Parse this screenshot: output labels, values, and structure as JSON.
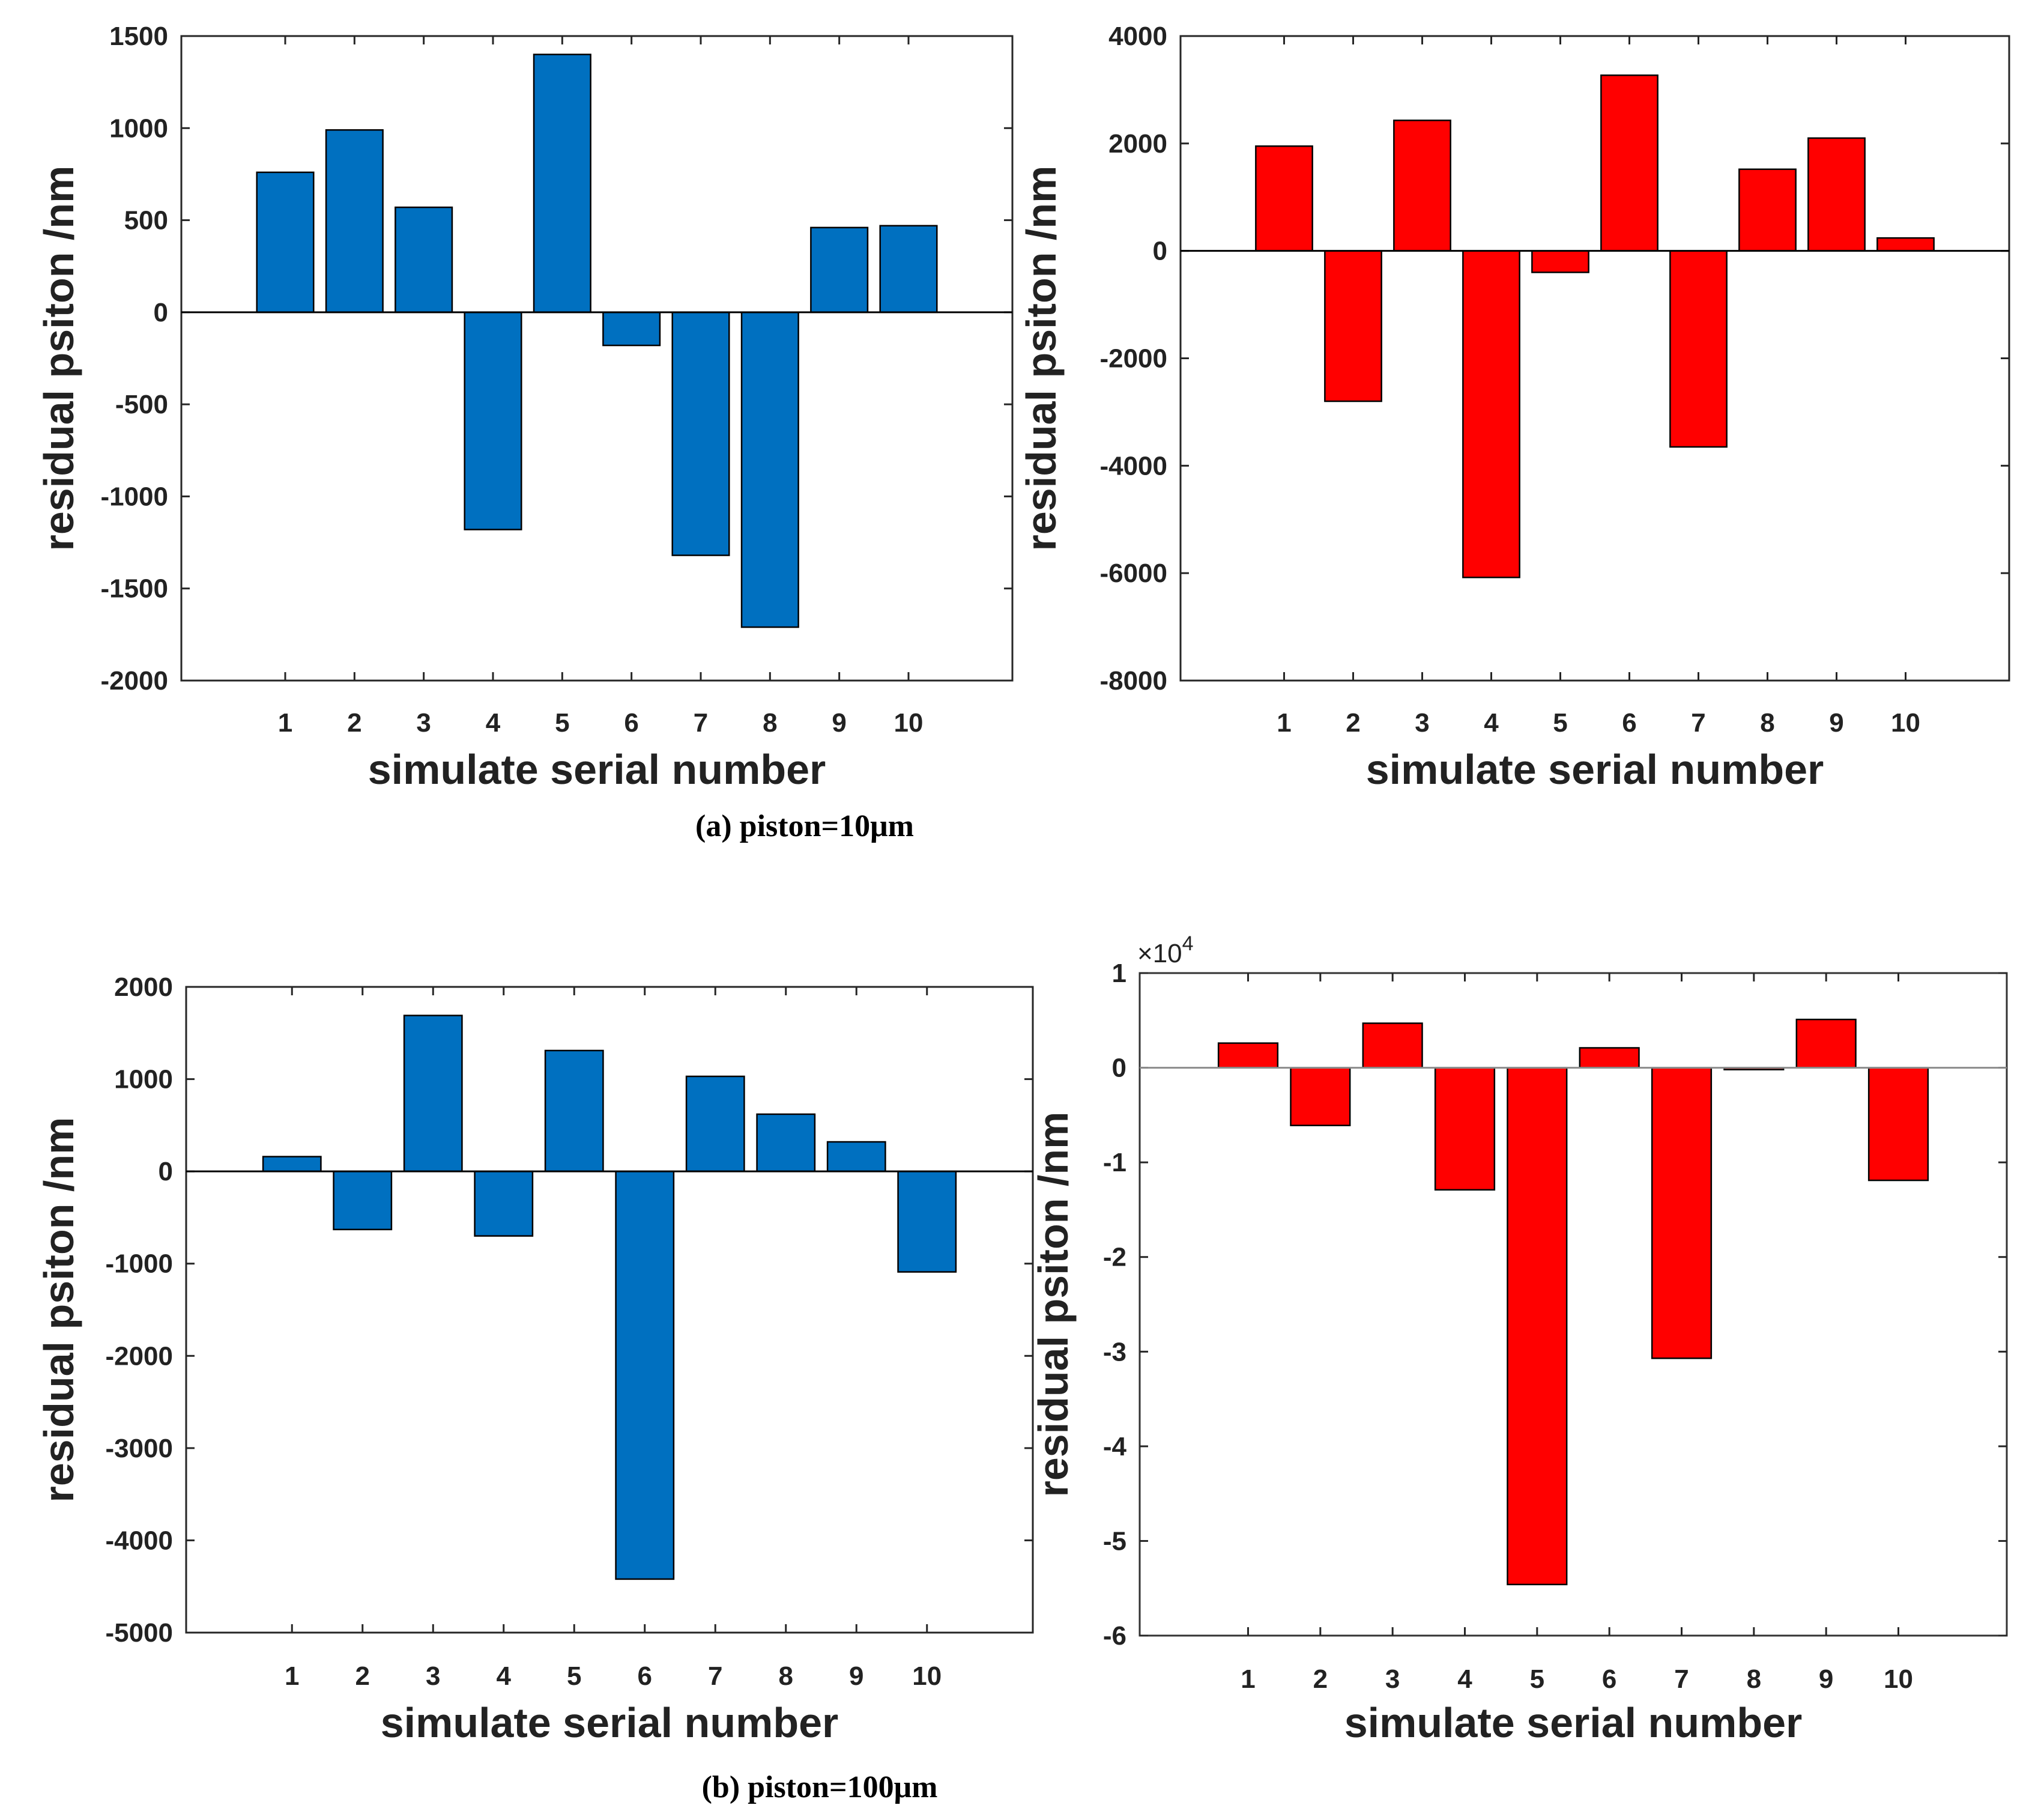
{
  "captions": {
    "a": "(a) piston=10μm",
    "b": "(b) piston=100μm"
  },
  "colors": {
    "blue": "#0070C0",
    "red": "#FF0000",
    "axis": "#262626",
    "zero_line_light": "#8c8c8c"
  },
  "chart_data": [
    {
      "id": "a-left",
      "type": "bar",
      "color": "blue",
      "categories": [
        "1",
        "2",
        "3",
        "4",
        "5",
        "6",
        "7",
        "8",
        "9",
        "10"
      ],
      "values": [
        760,
        990,
        570,
        -1180,
        1400,
        -180,
        -1320,
        -1710,
        460,
        470
      ],
      "xlabel": "simulate serial number",
      "ylabel": "residual psiton /nm",
      "ylim": [
        -2000,
        1500
      ],
      "yticks": [
        -2000,
        -1500,
        -1000,
        -500,
        0,
        500,
        1000,
        1500
      ],
      "ytick_labels": [
        "-2000",
        "-1500",
        "-1000",
        "-500",
        "0",
        "500",
        "1000",
        "1500"
      ]
    },
    {
      "id": "a-right",
      "type": "bar",
      "color": "red",
      "categories": [
        "1",
        "2",
        "3",
        "4",
        "5",
        "6",
        "7",
        "8",
        "9",
        "10"
      ],
      "values": [
        1950,
        -2800,
        2430,
        -6080,
        -400,
        3270,
        -3650,
        1520,
        2100,
        240
      ],
      "xlabel": "simulate serial number",
      "ylabel": "residual psiton /nm",
      "ylim": [
        -8000,
        4000
      ],
      "yticks": [
        -8000,
        -6000,
        -4000,
        -2000,
        0,
        2000,
        4000
      ],
      "ytick_labels": [
        "-8000",
        "-6000",
        "-4000",
        "-2000",
        "0",
        "2000",
        "4000"
      ]
    },
    {
      "id": "b-left",
      "type": "bar",
      "color": "blue",
      "categories": [
        "1",
        "2",
        "3",
        "4",
        "5",
        "6",
        "7",
        "8",
        "9",
        "10"
      ],
      "values": [
        160,
        -630,
        1690,
        -700,
        1310,
        -4420,
        1030,
        620,
        320,
        -1090
      ],
      "xlabel": "simulate serial number",
      "ylabel": "residual psiton /nm",
      "ylim": [
        -5000,
        2000
      ],
      "yticks": [
        -5000,
        -4000,
        -3000,
        -2000,
        -1000,
        0,
        1000,
        2000
      ],
      "ytick_labels": [
        "-5000",
        "-4000",
        "-3000",
        "-2000",
        "-1000",
        "0",
        "1000",
        "2000"
      ]
    },
    {
      "id": "b-right",
      "type": "bar",
      "color": "red",
      "categories": [
        "1",
        "2",
        "3",
        "4",
        "5",
        "6",
        "7",
        "8",
        "9",
        "10"
      ],
      "values": [
        2600,
        -6100,
        4700,
        -12900,
        -54600,
        2100,
        -30700,
        -200,
        5100,
        -11900
      ],
      "xlabel": "simulate serial number",
      "ylabel": "residual psiton /nm",
      "ylim": [
        -60000,
        10000
      ],
      "yticks": [
        -60000,
        -50000,
        -40000,
        -30000,
        -20000,
        -10000,
        0,
        10000
      ],
      "ytick_labels": [
        "-6",
        "-5",
        "-4",
        "-3",
        "-2",
        "-1",
        "0",
        "1"
      ],
      "exponent_label": "×10",
      "exponent_power": "4"
    }
  ]
}
